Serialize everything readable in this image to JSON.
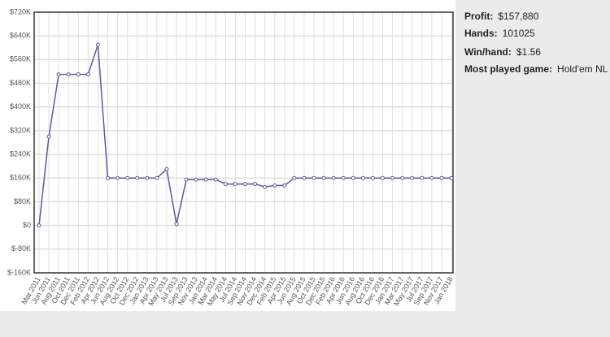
{
  "chart_data": {
    "type": "line",
    "categories": [
      "Mar 2011",
      "Jun 2011",
      "Aug 2011",
      "Oct 2011",
      "Dec 2011",
      "Feb 2012",
      "Apr 2012",
      "Jun 2012",
      "Aug 2012",
      "Oct 2012",
      "Dec 2012",
      "Jan 2013",
      "Apr 2013",
      "May 2013",
      "Jul 2013",
      "Sep 2013",
      "Nov 2013",
      "Jan 2014",
      "Mar 2014",
      "May 2014",
      "Jul 2014",
      "Sep 2014",
      "Nov 2014",
      "Dec 2014",
      "Feb 2015",
      "Apr 2015",
      "Jun 2015",
      "Aug 2015",
      "Oct 2015",
      "Dec 2015",
      "Feb 2016",
      "Apr 2016",
      "Jun 2016",
      "Aug 2016",
      "Oct 2016",
      "Dec 2016",
      "Jan 2017",
      "Mar 2017",
      "May 2017",
      "Jul 2017",
      "Sep 2017",
      "Nov 2017",
      "Jan 2018"
    ],
    "series": [
      {
        "color": "#5a5a9e",
        "values": [
          0,
          300000,
          510000,
          510000,
          510000,
          510000,
          610000,
          160000,
          160000,
          160000,
          160000,
          160000,
          160000,
          190000,
          5000,
          155000,
          155000,
          155000,
          155000,
          140000,
          140000,
          140000,
          140000,
          130000,
          135000,
          135000,
          160000,
          160000,
          160000,
          160000,
          160000,
          160000,
          160000,
          160000,
          160000,
          160000,
          160000,
          160000,
          160000,
          160000,
          160000,
          160000,
          160000
        ]
      }
    ],
    "ylim": [
      -160000,
      720000
    ],
    "yticks": [
      {
        "value": -160000,
        "label": "$-160K"
      },
      {
        "value": -80000,
        "label": "$-80K"
      },
      {
        "value": 0,
        "label": "$0"
      },
      {
        "value": 80000,
        "label": "$80K"
      },
      {
        "value": 160000,
        "label": "$160K"
      },
      {
        "value": 240000,
        "label": "$240K"
      },
      {
        "value": 320000,
        "label": "$320K"
      },
      {
        "value": 400000,
        "label": "$400K"
      },
      {
        "value": 480000,
        "label": "$480K"
      },
      {
        "value": 560000,
        "label": "$560K"
      },
      {
        "value": 640000,
        "label": "$640K"
      },
      {
        "value": 720000,
        "label": "$720K"
      }
    ],
    "grid": true
  },
  "stats": [
    {
      "label": "Profit:",
      "value": "$157,880"
    },
    {
      "label": "Hands:",
      "value": "101025"
    },
    {
      "label": "Win/hand:",
      "value": "$1.56"
    },
    {
      "label": "Most played game:",
      "value": "Hold'em NL"
    }
  ]
}
